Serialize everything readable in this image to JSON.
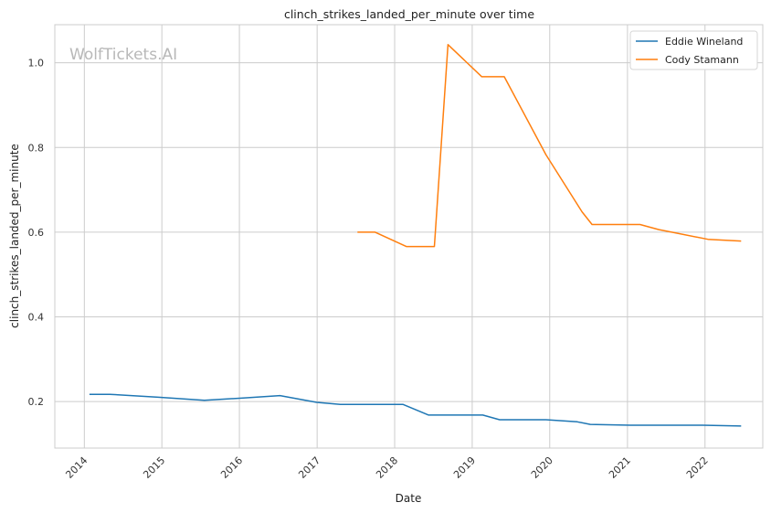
{
  "chart_data": {
    "type": "line",
    "title": "clinch_strikes_landed_per_minute over time",
    "xlabel": "Date",
    "ylabel": "clinch_strikes_landed_per_minute",
    "watermark": "WolfTickets.AI",
    "x_ticks": [
      "2014",
      "2015",
      "2016",
      "2017",
      "2018",
      "2019",
      "2020",
      "2021",
      "2022"
    ],
    "y_ticks": [
      "0.2",
      "0.4",
      "0.6",
      "0.8",
      "1.0"
    ],
    "xlim": [
      "2013-08-15",
      "2022-09-30"
    ],
    "ylim": [
      0.09,
      1.09
    ],
    "grid": true,
    "legend_position": "top-right",
    "colors": {
      "Eddie Wineland": "#1f77b4",
      "Cody Stamann": "#ff7f0e"
    },
    "series": [
      {
        "name": "Eddie Wineland",
        "x": [
          "2014-01-25",
          "2014-05-01",
          "2014-12-15",
          "2015-07-20",
          "2016-01-10",
          "2016-07-10",
          "2016-12-30",
          "2017-04-20",
          "2018-02-10",
          "2018-06-10",
          "2019-02-20",
          "2019-05-10",
          "2019-12-14",
          "2020-05-10",
          "2020-07-10",
          "2021-01-15",
          "2021-03-01",
          "2021-12-20",
          "2022-06-20"
        ],
        "values": [
          0.217,
          0.217,
          0.21,
          0.203,
          0.208,
          0.214,
          0.198,
          0.193,
          0.193,
          0.168,
          0.168,
          0.157,
          0.157,
          0.152,
          0.146,
          0.144,
          0.144,
          0.144,
          0.142
        ]
      },
      {
        "name": "Cody Stamann",
        "x": [
          "2017-07-10",
          "2017-10-01",
          "2018-02-25",
          "2018-07-07",
          "2018-09-09",
          "2019-02-15",
          "2019-06-01",
          "2019-12-14",
          "2020-06-01",
          "2020-07-18",
          "2021-03-01",
          "2021-05-29",
          "2022-01-15",
          "2022-06-20"
        ],
        "values": [
          0.6,
          0.6,
          0.566,
          0.566,
          1.043,
          0.967,
          0.967,
          0.783,
          0.648,
          0.618,
          0.618,
          0.606,
          0.583,
          0.579
        ]
      }
    ]
  }
}
